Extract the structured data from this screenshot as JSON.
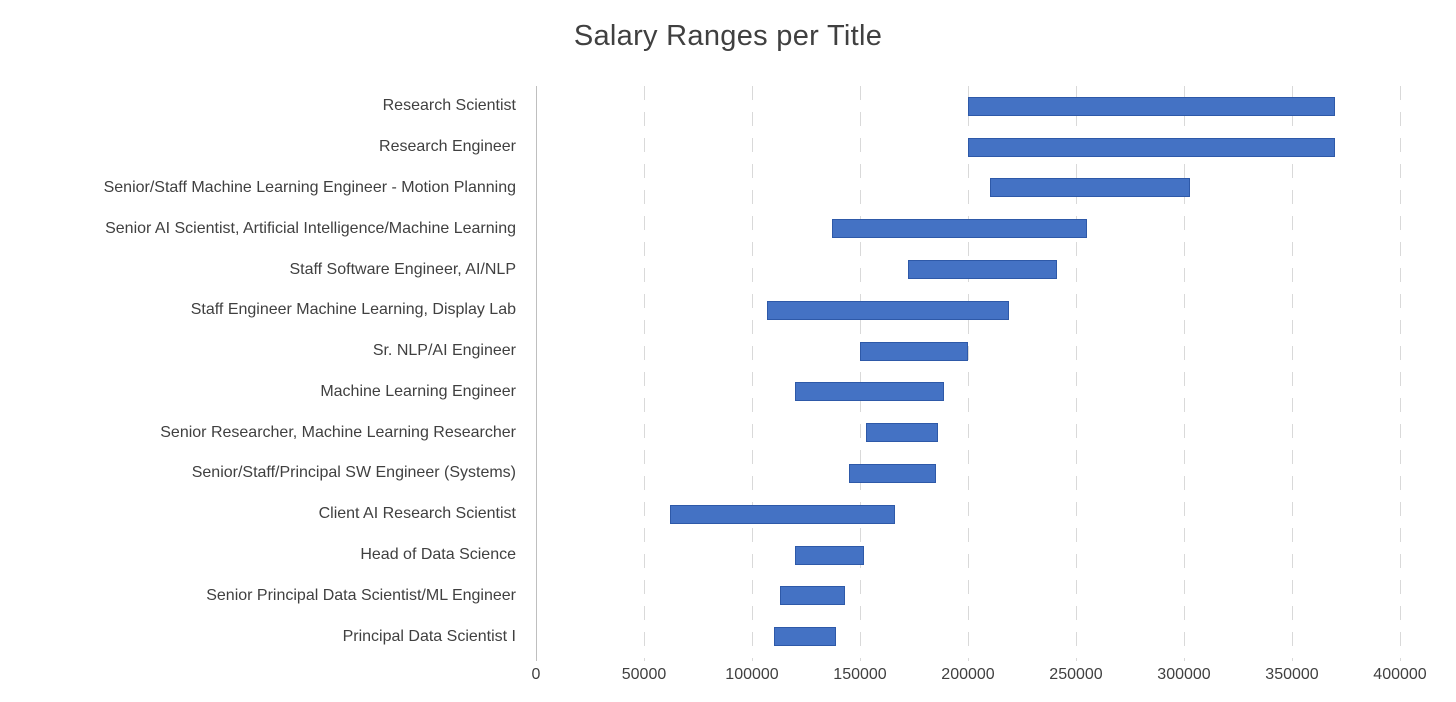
{
  "chart_data": {
    "type": "bar",
    "subtype": "horizontal-floating-range",
    "title": "Salary Ranges per Title",
    "xlabel": "",
    "ylabel": "",
    "xlim": [
      0,
      400000
    ],
    "x_ticks": [
      0,
      50000,
      100000,
      150000,
      200000,
      250000,
      300000,
      350000,
      400000
    ],
    "grid": "vertical-dashed",
    "legend_position": "none",
    "categories": [
      "Research Scientist",
      "Research Engineer",
      "Senior/Staff Machine Learning Engineer - Motion Planning",
      "Senior AI Scientist, Artificial Intelligence/Machine Learning",
      "Staff Software Engineer, AI/NLP",
      "Staff Engineer Machine Learning, Display Lab",
      "Sr. NLP/AI Engineer",
      "Machine Learning Engineer",
      "Senior Researcher, Machine Learning Researcher",
      "Senior/Staff/Principal SW Engineer (Systems)",
      "Client AI Research Scientist",
      "Head of Data Science",
      "Senior Principal Data Scientist/ML Engineer",
      "Principal Data Scientist I"
    ],
    "series": [
      {
        "name": "range_low",
        "values": [
          200000,
          200000,
          210000,
          137000,
          172000,
          107000,
          150000,
          120000,
          153000,
          145000,
          62000,
          120000,
          113000,
          110000
        ]
      },
      {
        "name": "range_high",
        "values": [
          370000,
          370000,
          303000,
          255000,
          241000,
          219000,
          200000,
          189000,
          186000,
          185000,
          166000,
          152000,
          143000,
          139000
        ]
      }
    ],
    "colors": {
      "bar_fill": "#4472C4",
      "bar_border": "#2E59A8",
      "gridline": "#D9D9D9",
      "axis_line": "#BFBFBF",
      "text": "#404040",
      "background": "#FFFFFF"
    }
  }
}
